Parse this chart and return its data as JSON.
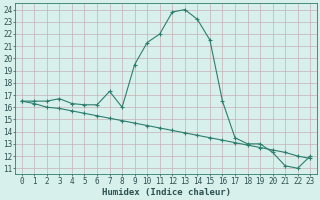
{
  "xlabel": "Humidex (Indice chaleur)",
  "bg_color": "#d8f0ec",
  "grid_color": "#c8b0b8",
  "line_color": "#2d7d6e",
  "x_ticks": [
    0,
    1,
    2,
    3,
    4,
    5,
    6,
    7,
    8,
    9,
    10,
    11,
    12,
    13,
    14,
    15,
    16,
    17,
    18,
    19,
    20,
    21,
    22,
    23
  ],
  "y_ticks": [
    11,
    12,
    13,
    14,
    15,
    16,
    17,
    18,
    19,
    20,
    21,
    22,
    23,
    24
  ],
  "ylim": [
    10.5,
    24.5
  ],
  "xlim": [
    -0.5,
    23.5
  ],
  "line1_x": [
    0,
    1,
    2,
    3,
    4,
    5,
    6,
    7,
    8,
    9,
    10,
    11,
    12,
    13,
    14,
    15,
    16,
    17,
    18,
    19,
    20,
    21,
    22,
    23
  ],
  "line1_y": [
    16.5,
    16.5,
    16.5,
    16.7,
    16.3,
    16.2,
    16.2,
    17.3,
    16.0,
    19.5,
    21.3,
    22.0,
    23.8,
    24.0,
    23.2,
    21.5,
    16.5,
    13.5,
    13.0,
    13.0,
    12.3,
    11.2,
    11.0,
    12.0
  ],
  "line2_x": [
    0,
    1,
    2,
    3,
    4,
    5,
    6,
    7,
    8,
    9,
    10,
    11,
    12,
    13,
    14,
    15,
    16,
    17,
    18,
    19,
    20,
    21,
    22,
    23
  ],
  "line2_y": [
    16.5,
    16.3,
    16.0,
    15.9,
    15.7,
    15.5,
    15.3,
    15.1,
    14.9,
    14.7,
    14.5,
    14.3,
    14.1,
    13.9,
    13.7,
    13.5,
    13.3,
    13.1,
    12.9,
    12.7,
    12.5,
    12.3,
    12.0,
    11.8
  ],
  "tick_fontsize": 5.5,
  "xlabel_fontsize": 6.5,
  "tick_color": "#2d5050",
  "spine_color": "#2d7d6e"
}
